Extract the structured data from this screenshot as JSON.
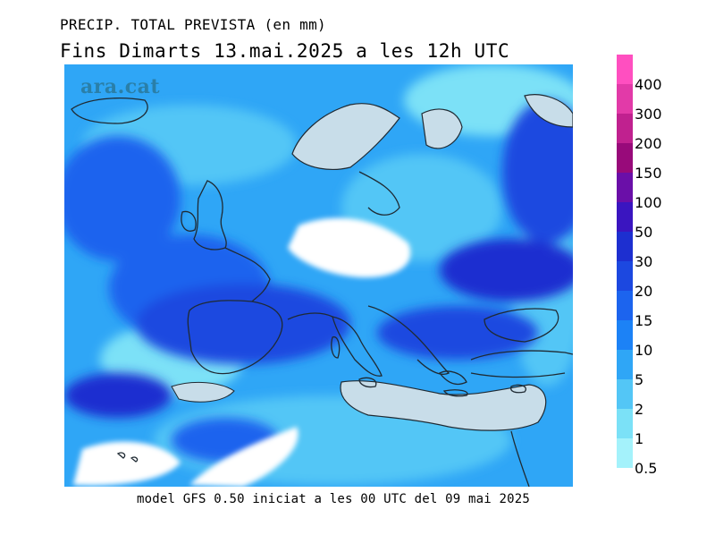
{
  "header": {
    "title": "PRECIP. TOTAL PREVISTA (en mm)",
    "subtitle": "Fins Dimarts   13.mai.2025 a les 12h UTC"
  },
  "map": {
    "logo": "ara.cat",
    "land_color": "#c8dde9",
    "coast_color": "#1f2a33"
  },
  "footer": "model GFS 0.50 iniciat a les 00 UTC del 09 mai 2025",
  "legend": {
    "labels": [
      "400",
      "300",
      "200",
      "150",
      "100",
      "50",
      "30",
      "20",
      "15",
      "10",
      "5",
      "2",
      "1",
      "0.5"
    ],
    "colors": [
      "#ff4fc0",
      "#e23aa8",
      "#c0218f",
      "#980a7a",
      "#6a0fa8",
      "#3a15c0",
      "#1d2fd0",
      "#1c48e0",
      "#1c64ee",
      "#1c82f6",
      "#2fa6f6",
      "#53c6f6",
      "#7be1f7",
      "#a4f2fb"
    ]
  }
}
